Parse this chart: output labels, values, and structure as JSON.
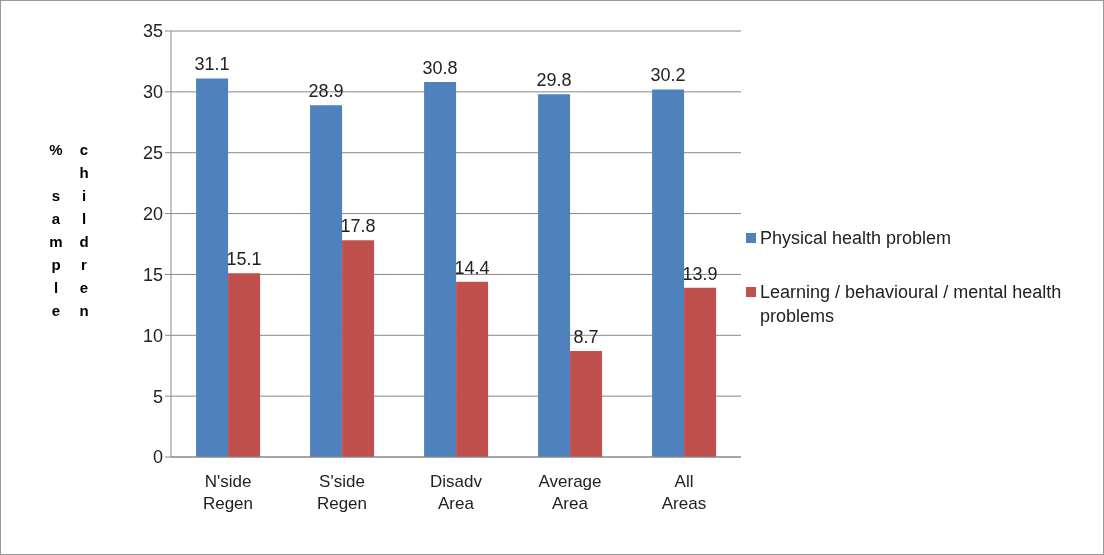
{
  "chart_data": {
    "type": "bar",
    "ylabel": "% sample children",
    "categories": [
      "N'side Regen",
      "S'side Regen",
      "Disadv Area",
      "Average Area",
      "All Areas"
    ],
    "series": [
      {
        "name": "Physical health problem",
        "color": "#4f81bd",
        "values": [
          31.1,
          28.9,
          30.8,
          29.8,
          30.2
        ]
      },
      {
        "name": "Learning / behavioural / mental health problems",
        "color": "#c0504d",
        "values": [
          15.1,
          17.8,
          14.4,
          8.7,
          13.9
        ]
      }
    ],
    "ylim": [
      0,
      35
    ],
    "yticks": [
      0,
      5,
      10,
      15,
      20,
      25,
      30,
      35
    ],
    "grid": "y",
    "legend": "right",
    "data_labels": true
  }
}
